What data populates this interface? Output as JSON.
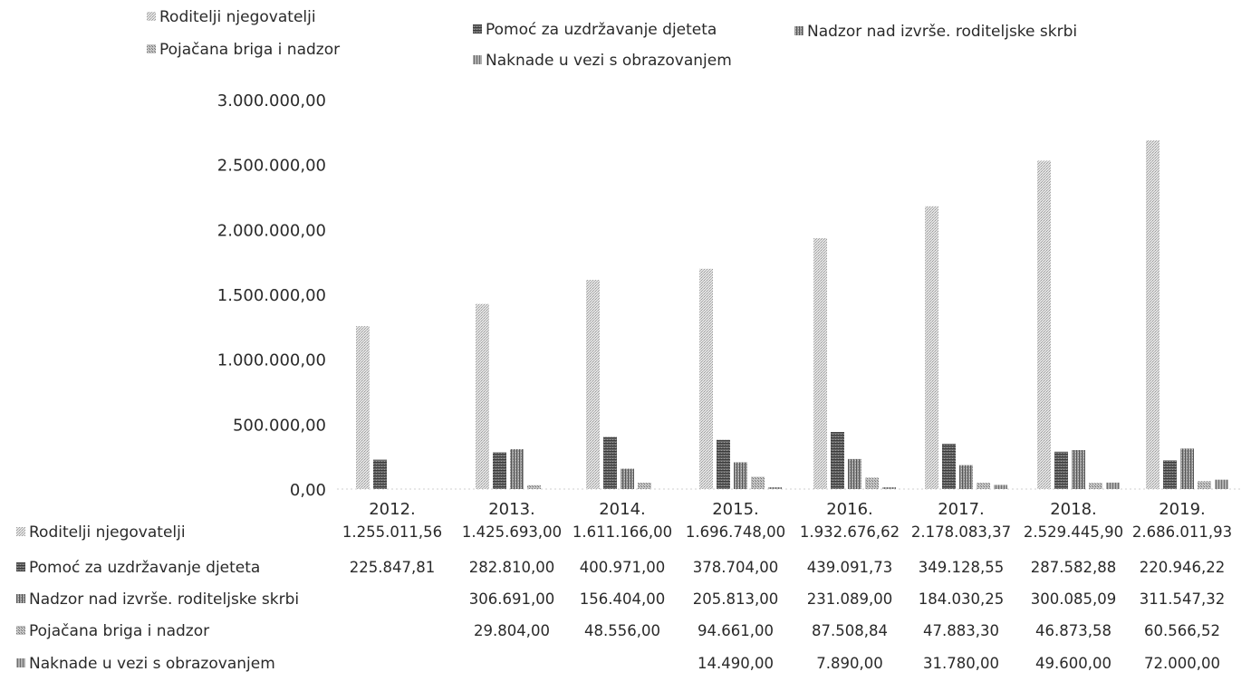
{
  "chart_data": {
    "type": "bar",
    "categories": [
      "2012.",
      "2013.",
      "2014.",
      "2015.",
      "2016.",
      "2017.",
      "2018.",
      "2019."
    ],
    "ylim": [
      0,
      3000000
    ],
    "yticks": [
      "0,00",
      "500.000,00",
      "1.000.000,00",
      "1.500.000,00",
      "2.000.000,00",
      "2.500.000,00",
      "3.000.000,00"
    ],
    "legend_position": "top",
    "grid": false,
    "series": [
      {
        "name": "Roditelji njegovatelji",
        "values": [
          1255011.56,
          1425693.0,
          1611166.0,
          1696748.0,
          1932676.62,
          2178083.37,
          2529445.9,
          2686011.93
        ],
        "labels": [
          "1.255.011,56",
          "1.425.693,00",
          "1.611.166,00",
          "1.696.748,00",
          "1.932.676,62",
          "2.178.083,37",
          "2.529.445,90",
          "2.686.011,93"
        ]
      },
      {
        "name": "Pomoć za uzdržavanje djeteta",
        "values": [
          225847.81,
          282810.0,
          400971.0,
          378704.0,
          439091.73,
          349128.55,
          287582.88,
          220946.22
        ],
        "labels": [
          "225.847,81",
          "282.810,00",
          "400.971,00",
          "378.704,00",
          "439.091,73",
          "349.128,55",
          "287.582,88",
          "220.946,22"
        ]
      },
      {
        "name": "Nadzor nad izvrše. roditeljske skrbi",
        "values": [
          null,
          306691.0,
          156404.0,
          205813.0,
          231089.0,
          184030.25,
          300085.09,
          311547.32
        ],
        "labels": [
          "",
          "306.691,00",
          "156.404,00",
          "205.813,00",
          "231.089,00",
          "184.030,25",
          "300.085,09",
          "311.547,32"
        ]
      },
      {
        "name": "Pojačana briga i nadzor",
        "values": [
          null,
          29804.0,
          48556.0,
          94661.0,
          87508.84,
          47883.3,
          46873.58,
          60566.52
        ],
        "labels": [
          "",
          "29.804,00",
          "48.556,00",
          "94.661,00",
          "87.508,84",
          "47.883,30",
          "46.873,58",
          "60.566,52"
        ]
      },
      {
        "name": "Naknade u vezi s obrazovanjem",
        "values": [
          null,
          null,
          null,
          14490.0,
          7890.0,
          31780.0,
          49600.0,
          72000.0
        ],
        "labels": [
          "",
          "",
          "",
          "14.490,00",
          "7.890,00",
          "31.780,00",
          "49.600,00",
          "72.000,00"
        ]
      }
    ],
    "colors": [
      "#d4d4d4",
      "#5e5e5e",
      "#8c8c8c",
      "#b4b4b4",
      "#a0a0a0"
    ]
  }
}
